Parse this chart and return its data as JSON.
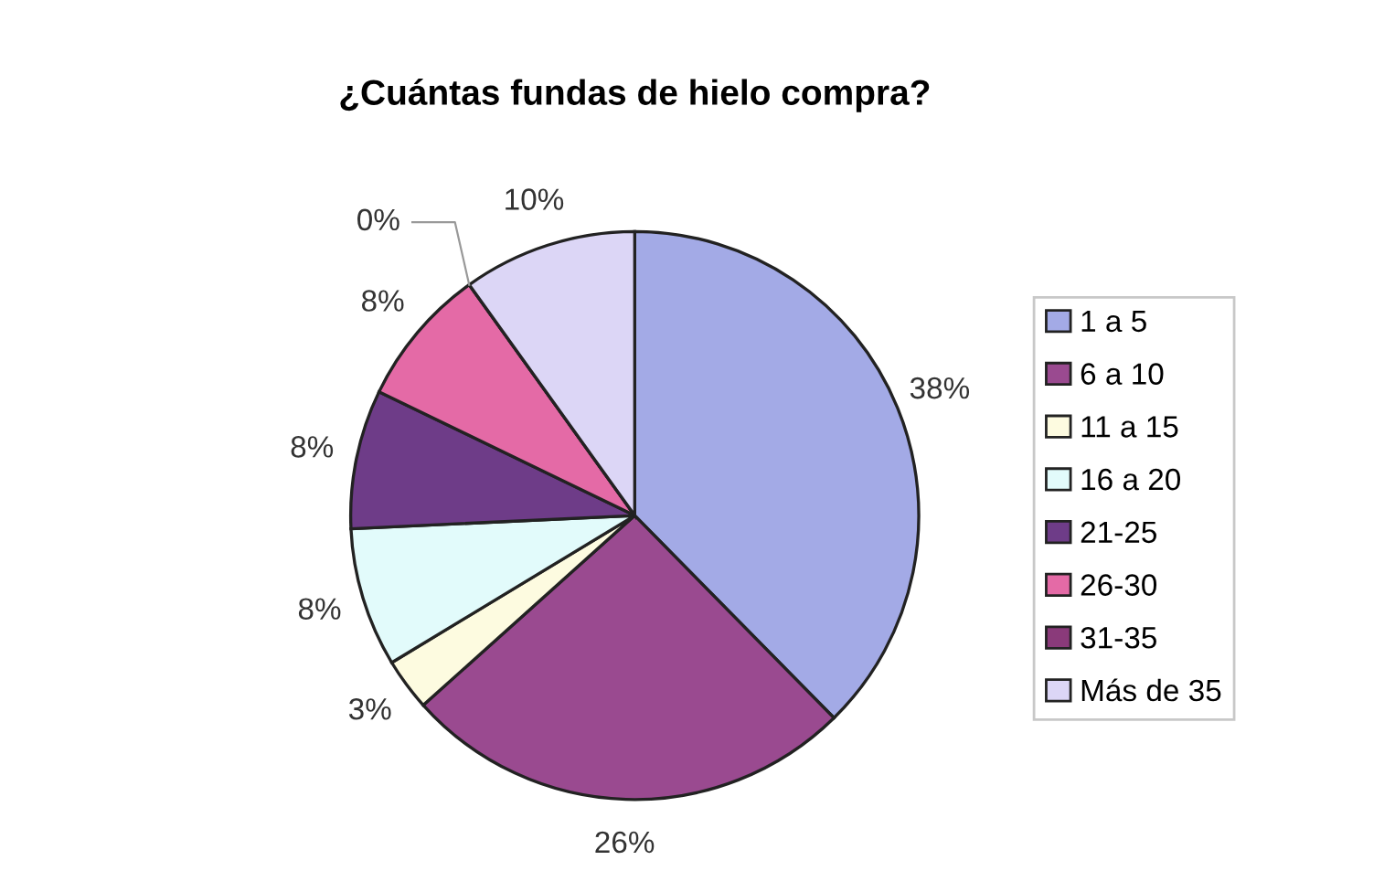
{
  "chart_data": {
    "type": "pie",
    "title": "¿Cuántas fundas de hielo compra?",
    "categories": [
      "1 a 5",
      "6 a 10",
      "11 a 15",
      "16 a 20",
      "21-25",
      "26-30",
      "31-35",
      "Más de 35"
    ],
    "values": [
      38,
      26,
      3,
      8,
      8,
      8,
      0,
      10
    ],
    "value_labels": [
      "38%",
      "26%",
      "3%",
      "8%",
      "8%",
      "8%",
      "0%",
      "10%"
    ],
    "colors": [
      "#a3aae6",
      "#9a4a90",
      "#fdfbe0",
      "#e2fbfb",
      "#6e3c88",
      "#e46aa6",
      "#8a3a7a",
      "#dcd6f6"
    ],
    "legend": "right"
  }
}
